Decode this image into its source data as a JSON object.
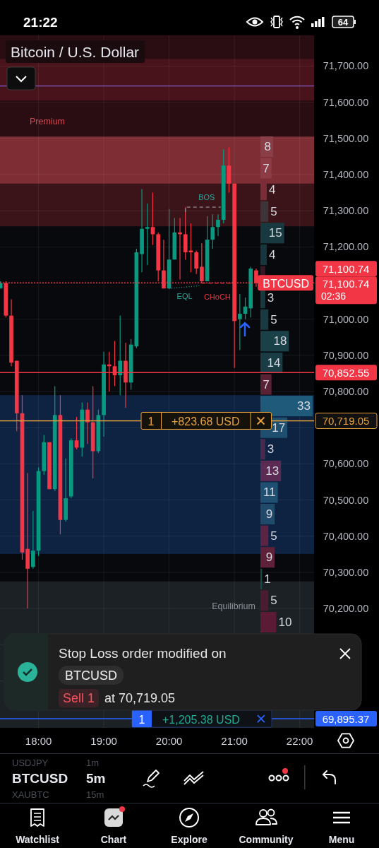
{
  "chart_data": [
    {
      "type": "candlestick",
      "title": "Bitcoin / U.S. Dollar",
      "x": [
        17.4167,
        17.5,
        17.5833,
        17.6667,
        17.75,
        17.8333,
        17.9167,
        18,
        18.0833,
        18.1667,
        18.25,
        18.3333,
        18.4167,
        18.5,
        18.5833,
        18.6667,
        18.75,
        18.8333,
        18.9167,
        19,
        19.0833,
        19.1667,
        19.25,
        19.3333,
        19.4167,
        19.5,
        19.5833,
        19.6667,
        19.75,
        19.8333,
        19.9167,
        20,
        20.0833,
        20.1667,
        20.25,
        20.3333,
        20.4167,
        20.5,
        20.5833,
        20.6667,
        20.75,
        20.8333,
        20.9167,
        21,
        21.0833,
        21.1667,
        21.25,
        21.3333
      ],
      "ohlc": [
        [
          71085,
          71105,
          71085,
          71100
        ],
        [
          71100,
          71105,
          71005,
          71010
        ],
        [
          71010,
          71055,
          70870,
          70880
        ],
        [
          70885,
          70885,
          70690,
          70740
        ],
        [
          70740,
          70790,
          70335,
          70355
        ],
        [
          70365,
          70575,
          70200,
          70310
        ],
        [
          70315,
          70470,
          70310,
          70360
        ],
        [
          70360,
          70590,
          70345,
          70580
        ],
        [
          70580,
          70680,
          70570,
          70660
        ],
        [
          70660,
          70660,
          70530,
          70530
        ],
        [
          70530,
          70815,
          70525,
          70735
        ],
        [
          70735,
          70790,
          70405,
          70445
        ],
        [
          70445,
          70615,
          70440,
          70505
        ],
        [
          70510,
          70670,
          70505,
          70665
        ],
        [
          70665,
          70730,
          70640,
          70645
        ],
        [
          70645,
          70770,
          70620,
          70750
        ],
        [
          70750,
          70770,
          70655,
          70715
        ],
        [
          70715,
          70815,
          70560,
          70635
        ],
        [
          70635,
          70750,
          70630,
          70735
        ],
        [
          70735,
          70910,
          70675,
          70875
        ],
        [
          70875,
          70910,
          70800,
          70870
        ],
        [
          70870,
          70940,
          70815,
          70845
        ],
        [
          70845,
          71010,
          70790,
          70885
        ],
        [
          70885,
          70935,
          70755,
          70825
        ],
        [
          70825,
          70945,
          70805,
          70930
        ],
        [
          70925,
          71195,
          70920,
          71185
        ],
        [
          71180,
          71360,
          71130,
          71250
        ],
        [
          71250,
          71320,
          71150,
          71255
        ],
        [
          71255,
          71350,
          71205,
          71235
        ],
        [
          71235,
          71240,
          71105,
          71135
        ],
        [
          71135,
          71220,
          71085,
          71085
        ],
        [
          71085,
          71305,
          71085,
          71165
        ],
        [
          71165,
          71280,
          71165,
          71240
        ],
        [
          71240,
          71280,
          71110,
          71235
        ],
        [
          71235,
          71310,
          71165,
          71185
        ],
        [
          71190,
          71265,
          71130,
          71185
        ],
        [
          71185,
          71190,
          71125,
          71140
        ],
        [
          71145,
          71210,
          71100,
          71105
        ],
        [
          71105,
          71285,
          71105,
          71220
        ],
        [
          71220,
          71290,
          71195,
          71255
        ],
        [
          71255,
          71290,
          71230,
          71275
        ],
        [
          71275,
          71470,
          71265,
          71425
        ],
        [
          71425,
          71475,
          71350,
          71375
        ],
        [
          71375,
          71375,
          70865,
          70995
        ],
        [
          71000,
          71070,
          70915,
          71015
        ],
        [
          71015,
          71060,
          71000,
          71035
        ],
        [
          71030,
          71145,
          71005,
          71140
        ],
        [
          71135,
          71140,
          71090,
          71100.74
        ]
      ],
      "series": [
        {
          "type": "line",
          "color": "#7e57c2",
          "x": [
            17.41,
            22.22
          ],
          "values": [
            71645,
            71645
          ]
        }
      ],
      "xlim": [
        17.41,
        22.22
      ],
      "ylim": [
        69870,
        71785
      ],
      "xticks": [
        {
          "value": 18,
          "label": "18:00"
        },
        {
          "value": 19,
          "label": "19:00"
        },
        {
          "value": 20,
          "label": "20:00"
        },
        {
          "value": 21,
          "label": "21:00"
        },
        {
          "value": 22,
          "label": "22:00"
        }
      ],
      "yticks": [
        {
          "value": 70000,
          "label": null
        },
        {
          "value": 70100,
          "label": null
        },
        {
          "value": 70200,
          "label": "70,200.00"
        },
        {
          "value": 70300,
          "label": "70,300.00"
        },
        {
          "value": 70400,
          "label": "70,400.00"
        },
        {
          "value": 70500,
          "label": "70,500.00"
        },
        {
          "value": 70600,
          "label": "70,600.00"
        },
        {
          "value": 70700,
          "label": null
        },
        {
          "value": 70800,
          "label": "70,800.00"
        },
        {
          "value": 70900,
          "label": "70,900.00"
        },
        {
          "value": 71000,
          "label": "71,000.00"
        },
        {
          "value": 71100,
          "label": null
        },
        {
          "value": 71200,
          "label": "71,200.00"
        },
        {
          "value": 71300,
          "label": "71,300.00"
        },
        {
          "value": 71400,
          "label": "71,400.00"
        },
        {
          "value": 71500,
          "label": "71,500.00"
        },
        {
          "value": 71600,
          "label": "71,600.00"
        },
        {
          "value": 71700,
          "label": "71,700.00"
        }
      ],
      "grid": true,
      "bands": [
        {
          "axis": "y",
          "from": 71257,
          "to": 71785,
          "label": "Premium",
          "color": "#2a0d12"
        },
        {
          "axis": "y",
          "from": 71605,
          "to": 71720,
          "color": "#48131a"
        },
        {
          "axis": "y",
          "from": 71257,
          "to": 71375,
          "color": "#3a1419"
        },
        {
          "axis": "y",
          "from": 71375,
          "to": 71505,
          "color": "#7f2d35"
        },
        {
          "axis": "y",
          "from": 70351,
          "to": 70790,
          "color": "#0e2342"
        },
        {
          "axis": "y",
          "from": 69870,
          "to": 70275,
          "label": "Equilibrium",
          "color": "#1b2124"
        }
      ],
      "ref_lines": [
        {
          "axis": "y",
          "value": 71100.74,
          "label": "BTCUSD",
          "color": "#f23645",
          "line_style": "dotted"
        },
        {
          "axis": "y",
          "value": 70852.55,
          "color": "#f23645"
        },
        {
          "axis": "y",
          "value": 70719.05,
          "label": "+823.68 USD",
          "color": "#e8a23a"
        },
        {
          "axis": "y",
          "value": 69895.37,
          "label": "+1,205.38 USD",
          "color": "#2962ff"
        }
      ],
      "annotations": [
        "21:22",
        "64",
        {
          "text": "BOS",
          "x": 20.25,
          "y": 71310
        },
        {
          "text": "EQL",
          "x": 20,
          "y": 71085
        },
        {
          "text": "CHoCH",
          "x": 20.5,
          "y": 71100
        },
        "71,100.74",
        "71,100.74",
        "02:36",
        "70,852.55",
        "70,719.05",
        "69,895.37",
        "1",
        "1",
        "Stop Loss order modified on",
        "BTCUSD",
        "Sell 1",
        "at 70,719.05",
        "USDJPY",
        "1m",
        "BTCUSD",
        "5m",
        "XAUBTC",
        "15m",
        "Watchlist",
        "Chart",
        "Explore",
        "Community",
        "Menu"
      ]
    },
    {
      "type": "bar",
      "orientation": "horizontal",
      "categories": [
        null,
        null,
        null,
        null,
        null,
        null,
        null,
        null,
        null,
        null,
        null,
        null,
        null,
        null,
        null,
        null,
        null,
        null,
        null,
        null,
        null,
        null,
        null
      ],
      "values": [
        8,
        7,
        4,
        5,
        15,
        4,
        3,
        3,
        5,
        18,
        14,
        7,
        33,
        17,
        3,
        13,
        11,
        9,
        5,
        9,
        1,
        5,
        10
      ],
      "colors": [
        "#8a3f48",
        "#8d3b45",
        "#7b2d37",
        "#3d3439",
        "#17393f",
        "#16373d",
        "#3b1723",
        "#173a41",
        "#183a40",
        "#1a4048",
        "#1a3d45",
        "#5a2034",
        "#1f5a7b",
        "#1e4f6f",
        "#4a2b50",
        "#5c2b54",
        "#1f5072",
        "#1f4a69",
        "#5b2442",
        "#5f2139",
        "#15484b",
        "#4b1b31",
        "#5b1b35"
      ],
      "value_labels": [
        "8",
        "7",
        "4",
        "5",
        "15",
        "4",
        null,
        "3",
        "5",
        "18",
        "14",
        "7",
        "33",
        "17",
        "3",
        "13",
        "11",
        "9",
        "5",
        "9",
        "1",
        "5",
        "10"
      ]
    }
  ]
}
